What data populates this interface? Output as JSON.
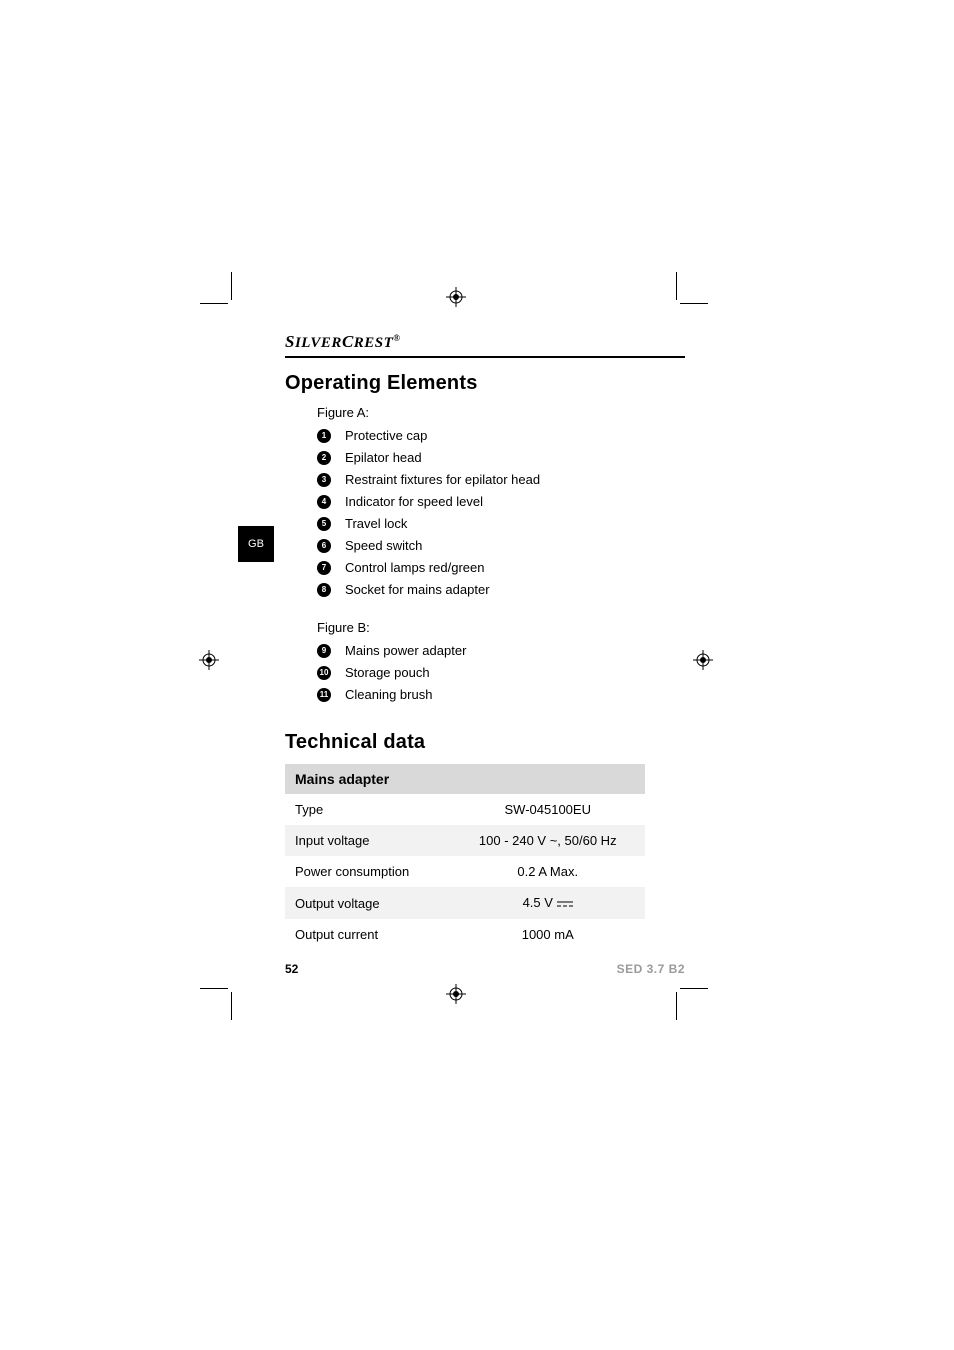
{
  "brand": "SILVERCREST",
  "lang_tab": "GB",
  "section1": {
    "title": "Operating Elements",
    "figA_label": "Figure A:",
    "figA_items": [
      "Protective cap",
      "Epilator head",
      "Restraint fixtures for epilator head",
      "Indicator for speed level",
      "Travel lock",
      "Speed switch",
      "Control lamps red/green",
      "Socket for mains adapter"
    ],
    "figB_label": "Figure B:",
    "figB_items": [
      "Mains power adapter",
      "Storage pouch",
      "Cleaning brush"
    ],
    "figB_start": 9
  },
  "section2": {
    "title": "Technical data",
    "table_header": "Mains adapter",
    "rows": [
      {
        "label": "Type",
        "value": "SW-045100EU"
      },
      {
        "label": "Input voltage",
        "value": "100 - 240 V ~, 50/60 Hz"
      },
      {
        "label": "Power consumption",
        "value": "0.2 A Max."
      },
      {
        "label": "Output voltage",
        "value": "4.5 V",
        "dc": true
      },
      {
        "label": "Output current",
        "value": "1000 mA"
      }
    ]
  },
  "footer": {
    "page": "52",
    "model": "SED 3.7 B2"
  },
  "colors": {
    "table_header_bg": "#d9d9d9",
    "table_row_alt_bg": "#f2f2f2",
    "model_color": "#9a9a9a",
    "text": "#000000",
    "bg": "#ffffff"
  },
  "typography": {
    "h1_size_pt": 20,
    "body_size_pt": 13,
    "footer_size_pt": 12
  }
}
